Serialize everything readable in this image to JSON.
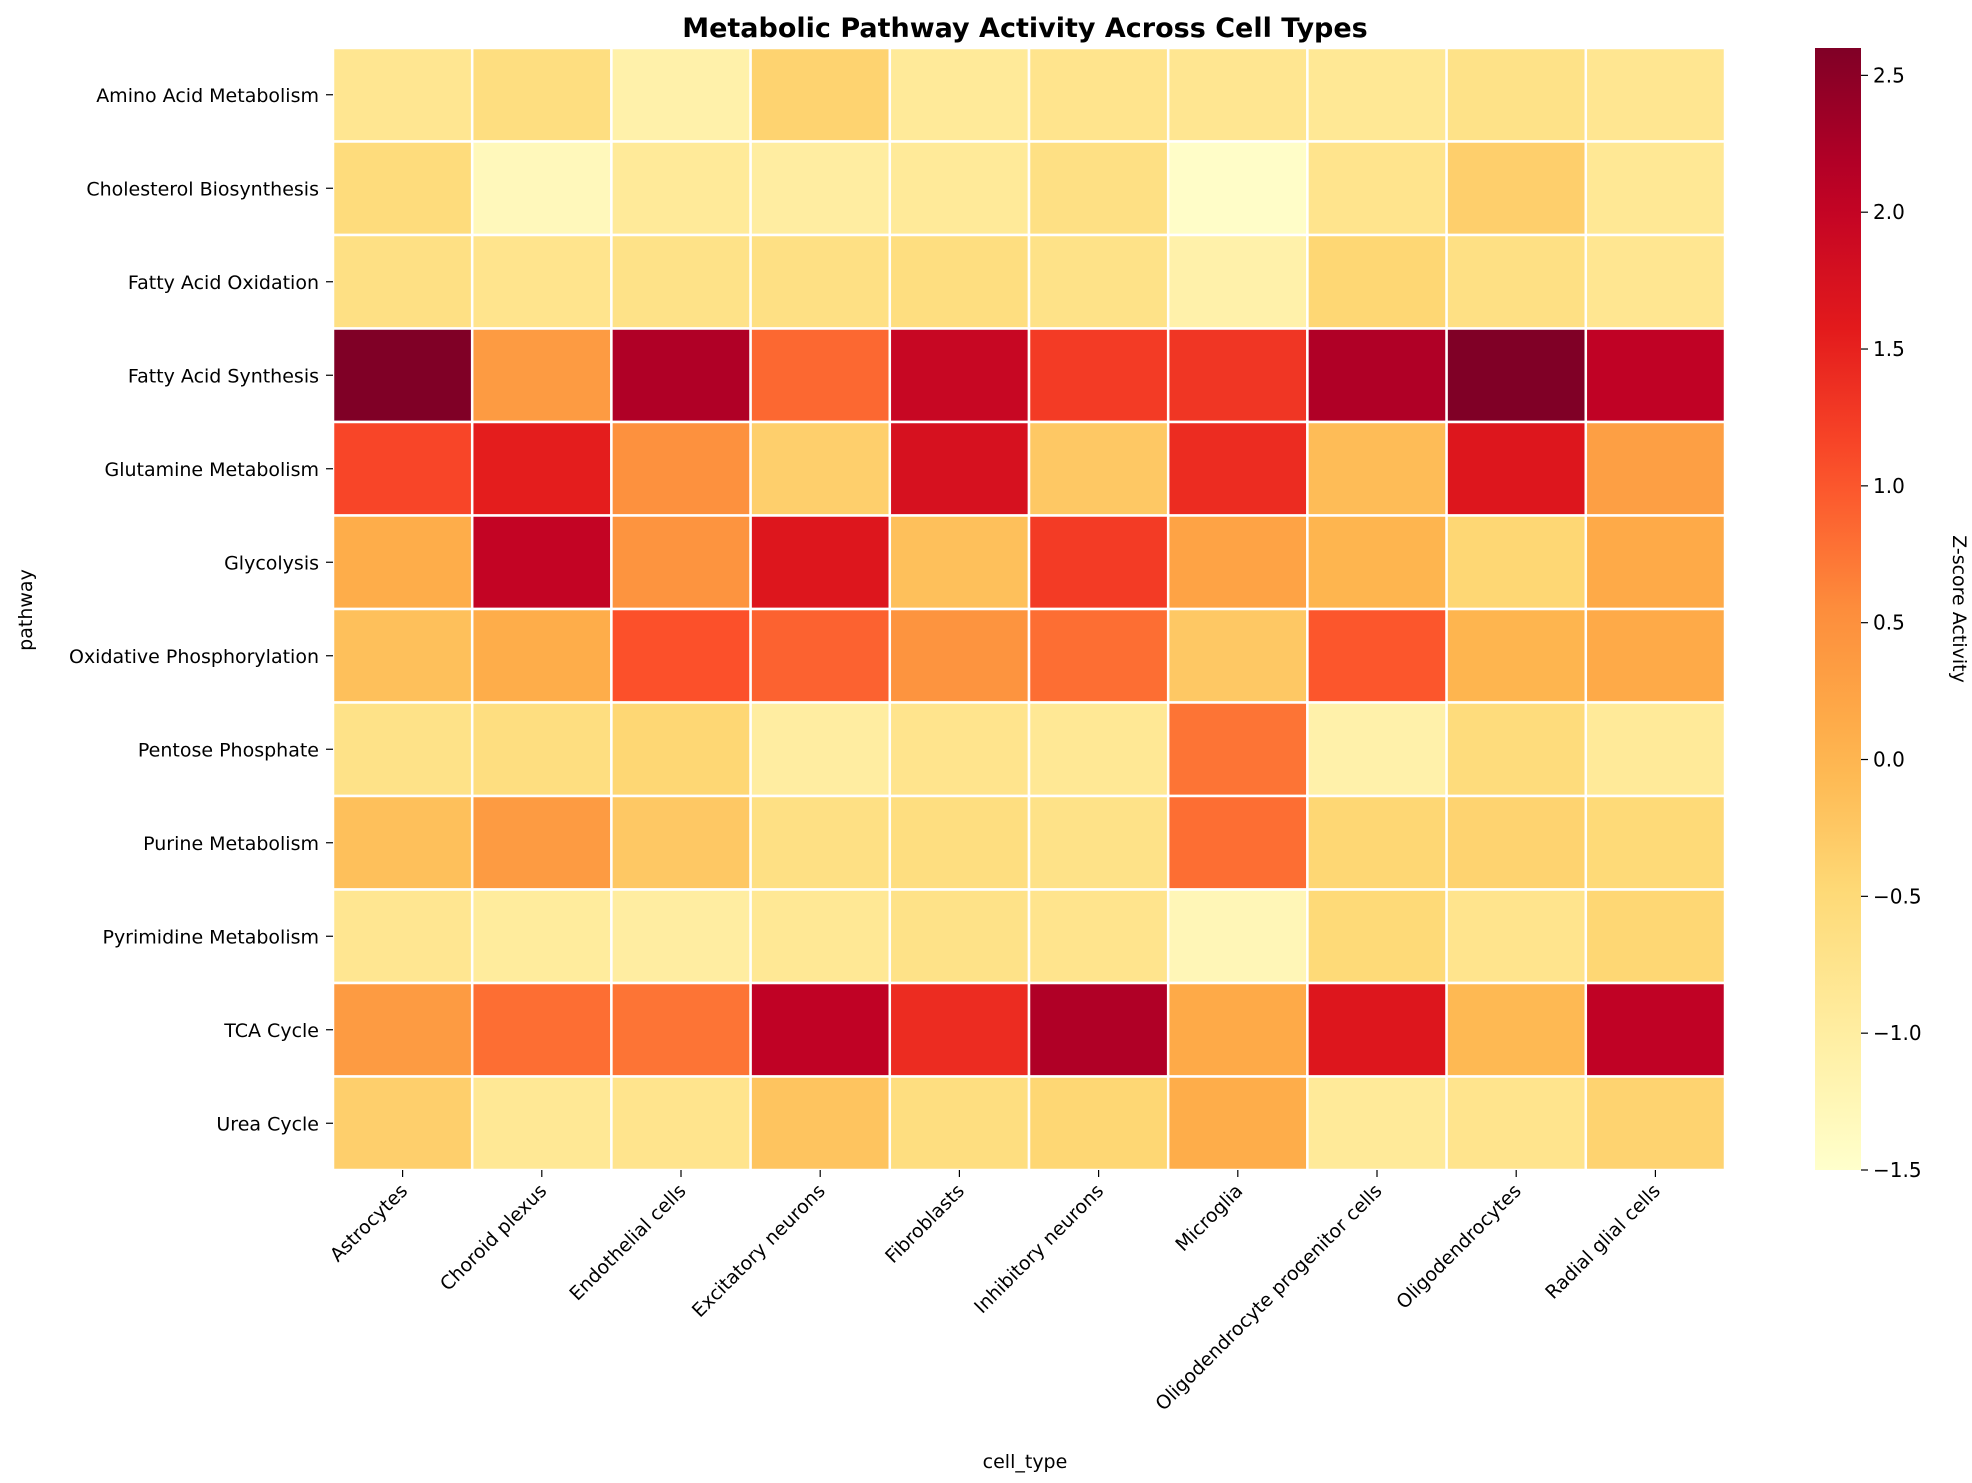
{
  "chart_data": {
    "type": "heatmap",
    "title": "Metabolic Pathway Activity Across Cell Types",
    "xlabel": "cell_type",
    "ylabel": "pathway",
    "colorbar_label": "Z-score Activity",
    "colormap": "YlOrRd",
    "vmin": -1.5,
    "vmax": 2.6,
    "colorbar_ticks": [
      2.5,
      2.0,
      1.5,
      1.0,
      0.5,
      0.0,
      -0.5,
      -1.0,
      -1.5
    ],
    "colorbar_tick_labels": [
      "2.5",
      "2.0",
      "1.5",
      "1.0",
      "0.5",
      "0.0",
      "−0.5",
      "−1.0",
      "−1.5"
    ],
    "columns": [
      "Astrocytes",
      "Choroid plexus",
      "Endothelial cells",
      "Excitatory neurons",
      "Fibroblasts",
      "Inhibitory neurons",
      "Microglia",
      "Oligodendrocyte progenitor cells",
      "Oligodendrocytes",
      "Radial glial cells"
    ],
    "rows": [
      "Amino Acid Metabolism",
      "Cholesterol Biosynthesis",
      "Fatty Acid Oxidation",
      "Fatty Acid Synthesis",
      "Glutamine Metabolism",
      "Glycolysis",
      "Oxidative Phosphorylation",
      "Pentose Phosphate",
      "Purine Metabolism",
      "Pyrimidine Metabolism",
      "TCA Cycle",
      "Urea Cycle"
    ],
    "values": [
      [
        -0.8,
        -0.6,
        -1.1,
        -0.4,
        -0.9,
        -0.75,
        -0.8,
        -0.85,
        -0.7,
        -0.8
      ],
      [
        -0.55,
        -1.3,
        -0.9,
        -1.0,
        -0.9,
        -0.65,
        -1.45,
        -0.75,
        -0.35,
        -0.85
      ],
      [
        -0.65,
        -0.75,
        -0.7,
        -0.65,
        -0.6,
        -0.7,
        -1.1,
        -0.45,
        -0.65,
        -0.8
      ],
      [
        2.6,
        0.35,
        2.2,
        0.85,
        1.95,
        1.25,
        1.3,
        2.2,
        2.6,
        2.05
      ],
      [
        1.15,
        1.55,
        0.5,
        -0.35,
        1.75,
        -0.25,
        1.4,
        -0.1,
        1.65,
        0.3
      ],
      [
        0.1,
        2.0,
        0.45,
        1.65,
        -0.15,
        1.25,
        0.25,
        0.0,
        -0.45,
        0.15
      ],
      [
        -0.15,
        0.1,
        1.05,
        0.9,
        0.45,
        0.8,
        -0.25,
        1.0,
        0.0,
        0.15
      ],
      [
        -0.7,
        -0.6,
        -0.45,
        -1.0,
        -0.75,
        -0.85,
        0.75,
        -1.1,
        -0.55,
        -0.9
      ],
      [
        -0.15,
        0.35,
        -0.25,
        -0.65,
        -0.6,
        -0.7,
        0.8,
        -0.45,
        -0.4,
        -0.5
      ],
      [
        -0.8,
        -0.95,
        -1.0,
        -0.85,
        -0.7,
        -0.75,
        -1.25,
        -0.5,
        -0.75,
        -0.45
      ],
      [
        0.35,
        0.8,
        0.75,
        2.05,
        1.4,
        2.2,
        0.15,
        1.65,
        -0.05,
        2.05
      ],
      [
        -0.35,
        -0.85,
        -0.75,
        -0.2,
        -0.6,
        -0.45,
        0.1,
        -0.9,
        -0.75,
        -0.4
      ]
    ]
  }
}
